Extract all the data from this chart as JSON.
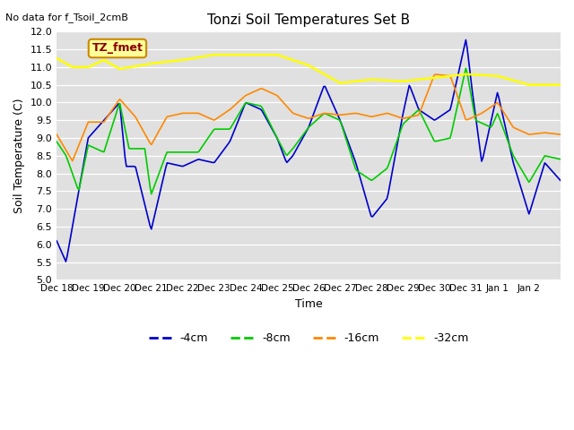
{
  "title": "Tonzi Soil Temperatures Set B",
  "no_data_text": "No data for f_Tsoil_2cmB",
  "tz_fmet_label": "TZ_fmet",
  "ylabel": "Soil Temperature (C)",
  "xlabel": "Time",
  "ylim": [
    5.0,
    12.0
  ],
  "yticks": [
    5.0,
    5.5,
    6.0,
    6.5,
    7.0,
    7.5,
    8.0,
    8.5,
    9.0,
    9.5,
    10.0,
    10.5,
    11.0,
    11.5,
    12.0
  ],
  "x_tick_labels": [
    "Dec 18",
    "Dec 19",
    "Dec 20",
    "Dec 21",
    "Dec 22",
    "Dec 23",
    "Dec 24",
    "Dec 25",
    "Dec 26",
    "Dec 27",
    "Dec 28",
    "Dec 29",
    "Dec 30",
    "Dec 31",
    "Jan 1",
    "Jan 2"
  ],
  "colors": {
    "4cm": "#0000cc",
    "8cm": "#00cc00",
    "16cm": "#ff8800",
    "32cm": "#ffff00",
    "legend_box_bg": "#ffff99",
    "legend_box_edge": "#cc8800",
    "bg": "#e0e0e0"
  },
  "legend_labels": [
    "-4cm",
    "-8cm",
    "-16cm",
    "-32cm"
  ],
  "n_days": 16
}
